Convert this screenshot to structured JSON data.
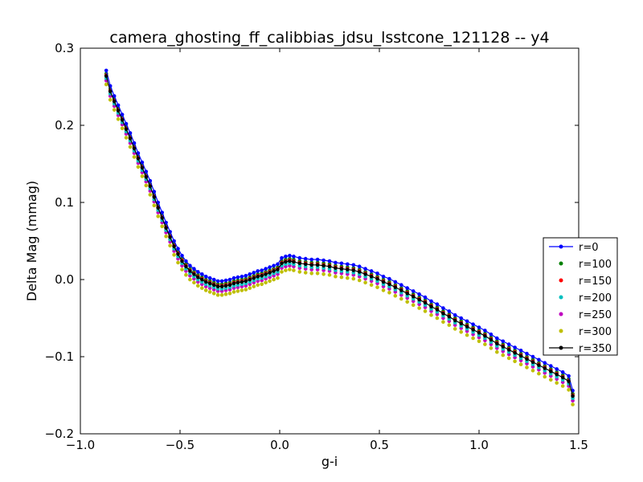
{
  "chart_data": {
    "type": "scatter",
    "title": "camera_ghosting_ff_calibbias_jdsu_lsstcone_121128 -- y4",
    "xlabel": "g-i",
    "ylabel": "Delta Mag (mmag)",
    "xlim": [
      -1.0,
      1.5
    ],
    "ylim": [
      -0.2,
      0.3
    ],
    "xticks": [
      "−1.0",
      "−0.5",
      "0.0",
      "0.5",
      "1.0",
      "1.5"
    ],
    "xtick_values": [
      -1.0,
      -0.5,
      0.0,
      0.5,
      1.0,
      1.5
    ],
    "yticks": [
      "0.3",
      "0.2",
      "0.1",
      "0.0",
      "−0.1",
      "−0.2"
    ],
    "ytick_values": [
      0.3,
      0.2,
      0.1,
      0.0,
      -0.1,
      -0.2
    ],
    "grid": false,
    "legend_position": "right",
    "x": [
      -0.87,
      -0.85,
      -0.83,
      -0.81,
      -0.79,
      -0.77,
      -0.75,
      -0.73,
      -0.71,
      -0.69,
      -0.67,
      -0.65,
      -0.63,
      -0.61,
      -0.59,
      -0.57,
      -0.55,
      -0.53,
      -0.51,
      -0.49,
      -0.47,
      -0.45,
      -0.43,
      -0.41,
      -0.39,
      -0.37,
      -0.35,
      -0.33,
      -0.31,
      -0.29,
      -0.27,
      -0.25,
      -0.23,
      -0.21,
      -0.19,
      -0.17,
      -0.15,
      -0.13,
      -0.11,
      -0.09,
      -0.07,
      -0.05,
      -0.03,
      -0.01,
      0.01,
      0.03,
      0.05,
      0.07,
      0.1,
      0.13,
      0.16,
      0.19,
      0.22,
      0.25,
      0.28,
      0.31,
      0.34,
      0.37,
      0.4,
      0.43,
      0.46,
      0.49,
      0.52,
      0.55,
      0.58,
      0.61,
      0.64,
      0.67,
      0.7,
      0.73,
      0.76,
      0.79,
      0.82,
      0.85,
      0.88,
      0.91,
      0.94,
      0.97,
      1.0,
      1.03,
      1.06,
      1.09,
      1.12,
      1.15,
      1.18,
      1.21,
      1.24,
      1.27,
      1.3,
      1.33,
      1.36,
      1.39,
      1.42,
      1.45,
      1.47
    ],
    "series": [
      {
        "name": "r=0",
        "color": "#0000ff",
        "marker": "line-dot",
        "offset": 0.006
      },
      {
        "name": "r=100",
        "color": "#008000",
        "marker": "dot",
        "offset": 0.002
      },
      {
        "name": "r=150",
        "color": "#ff0000",
        "marker": "dot",
        "offset": 0.0
      },
      {
        "name": "r=200",
        "color": "#00bfbf",
        "marker": "dot",
        "offset": -0.004
      },
      {
        "name": "r=250",
        "color": "#bf00bf",
        "marker": "dot",
        "offset": -0.007
      },
      {
        "name": "r=300",
        "color": "#bfbf00",
        "marker": "dot",
        "offset": -0.012
      },
      {
        "name": "r=350",
        "color": "#000000",
        "marker": "line-dot",
        "offset": -0.001
      }
    ],
    "base_y": [
      0.265,
      0.245,
      0.232,
      0.22,
      0.208,
      0.196,
      0.184,
      0.171,
      0.158,
      0.146,
      0.134,
      0.122,
      0.108,
      0.094,
      0.081,
      0.068,
      0.056,
      0.044,
      0.034,
      0.025,
      0.018,
      0.012,
      0.008,
      0.004,
      0.001,
      -0.002,
      -0.004,
      -0.006,
      -0.008,
      -0.008,
      -0.007,
      -0.006,
      -0.004,
      -0.003,
      -0.002,
      -0.001,
      0.001,
      0.003,
      0.005,
      0.006,
      0.008,
      0.01,
      0.012,
      0.014,
      0.022,
      0.024,
      0.025,
      0.024,
      0.022,
      0.021,
      0.02,
      0.02,
      0.019,
      0.018,
      0.016,
      0.015,
      0.014,
      0.013,
      0.011,
      0.008,
      0.005,
      0.002,
      -0.002,
      -0.005,
      -0.009,
      -0.013,
      -0.017,
      -0.021,
      -0.025,
      -0.029,
      -0.034,
      -0.038,
      -0.043,
      -0.047,
      -0.052,
      -0.056,
      -0.06,
      -0.064,
      -0.068,
      -0.072,
      -0.077,
      -0.082,
      -0.086,
      -0.09,
      -0.094,
      -0.098,
      -0.102,
      -0.106,
      -0.11,
      -0.114,
      -0.118,
      -0.122,
      -0.126,
      -0.131,
      -0.15
    ]
  }
}
